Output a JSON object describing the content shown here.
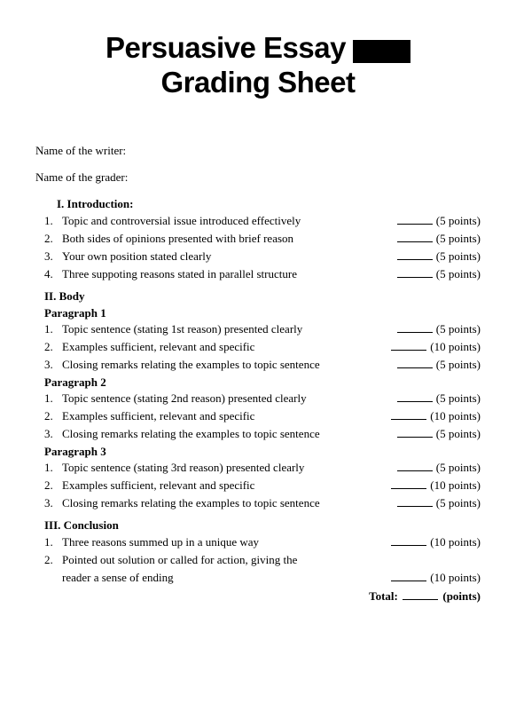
{
  "title": {
    "line1": "Persuasive Essay",
    "line2": "Grading Sheet"
  },
  "name_writer_label": "Name of the writer:",
  "name_grader_label": "Name of the grader:",
  "sections": {
    "intro": {
      "heading": "I.   Introduction:",
      "items": [
        {
          "num": "1.",
          "text": "Topic and controversial issue introduced effectively",
          "points": "(5 points)"
        },
        {
          "num": "2.",
          "text": "Both sides of opinions presented with brief reason",
          "points": "(5 points)"
        },
        {
          "num": "3.",
          "text": "Your own position stated clearly",
          "points": "(5 points)"
        },
        {
          "num": "4.",
          "text": "Three suppoting reasons stated in parallel structure",
          "points": "(5 points)"
        }
      ]
    },
    "body": {
      "heading": "II. Body",
      "p1": {
        "heading": "Paragraph 1",
        "items": [
          {
            "num": "1.",
            "text": "Topic sentence (stating 1st reason) presented clearly",
            "points": "(5 points)"
          },
          {
            "num": "2.",
            "text": "Examples sufficient, relevant and specific",
            "points": "(10 points)"
          },
          {
            "num": "3.",
            "text": "Closing remarks relating the examples to topic sentence",
            "points": "(5 points)"
          }
        ]
      },
      "p2": {
        "heading": "Paragraph 2",
        "items": [
          {
            "num": "1.",
            "text": "Topic sentence (stating 2nd reason) presented clearly",
            "points": "(5 points)"
          },
          {
            "num": "2.",
            "text": "Examples sufficient, relevant and specific",
            "points": "(10 points)"
          },
          {
            "num": "3.",
            "text": "Closing remarks relating the examples to topic sentence",
            "points": "(5 points)"
          }
        ]
      },
      "p3": {
        "heading": "Paragraph 3",
        "items": [
          {
            "num": "1.",
            "text": "Topic sentence (stating 3rd reason) presented clearly",
            "points": "(5 points)"
          },
          {
            "num": "2.",
            "text": "Examples sufficient, relevant and specific",
            "points": "(10 points)"
          },
          {
            "num": "3.",
            "text": "Closing remarks relating the examples to topic sentence",
            "points": "(5 points)"
          }
        ]
      }
    },
    "conclusion": {
      "heading": "III. Conclusion",
      "items": [
        {
          "num": "1.",
          "text": "Three reasons summed up in a unique way",
          "points": "(10 points)"
        },
        {
          "num": "2.",
          "text": "Pointed out solution or called for action, giving the",
          "points": ""
        },
        {
          "num": "",
          "text": "reader a sense of ending",
          "points": "(10 points)"
        }
      ]
    }
  },
  "total": {
    "label": "Total:",
    "unit": "(points)"
  }
}
